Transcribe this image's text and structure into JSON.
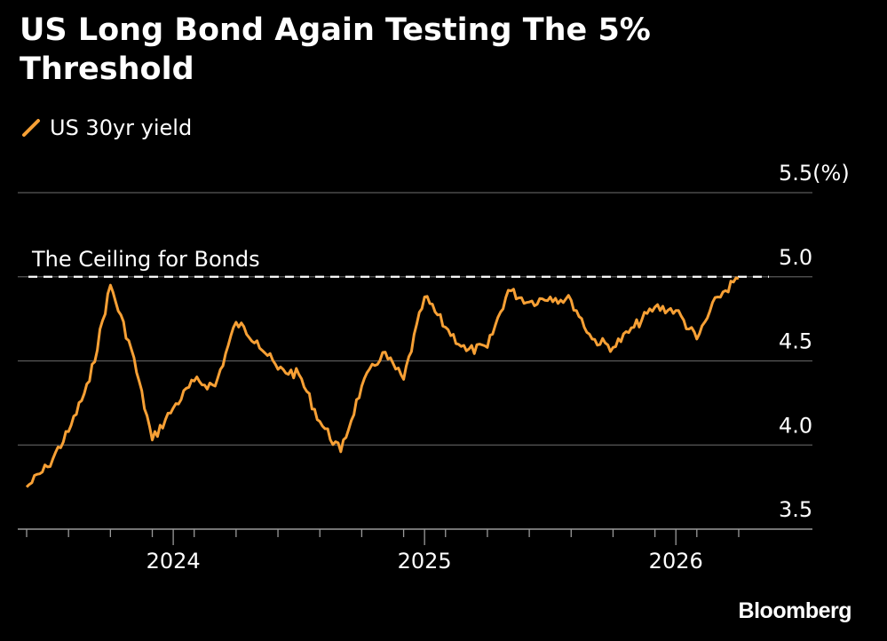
{
  "title": "US Long Bond Again Testing The 5% Threshold",
  "source": "Bloomberg",
  "colors": {
    "background": "#000000",
    "series": "#f7a035",
    "grid": "#5a5a5a",
    "reference": "#ffffff",
    "text": "#ffffff"
  },
  "chart_data": {
    "type": "line",
    "title": "US Long Bond Again Testing The 5% Threshold",
    "series": [
      {
        "name": "US 30yr yield",
        "x": [
          "2023-06",
          "2023-07",
          "2023-08",
          "2023-09",
          "2023-10",
          "2023-11",
          "2023-12",
          "2024-01",
          "2024-02",
          "2024-03",
          "2024-04",
          "2024-05",
          "2024-06",
          "2024-07",
          "2024-08",
          "2024-09",
          "2024-10",
          "2024-11",
          "2024-12",
          "2025-01",
          "2025-02",
          "2025-03",
          "2025-04",
          "2025-05",
          "2025-06",
          "2025-07",
          "2025-08",
          "2025-09",
          "2025-10",
          "2025-11",
          "2025-12",
          "2026-01",
          "2026-02",
          "2026-03",
          "2026-04"
        ],
        "values": [
          3.75,
          3.87,
          4.08,
          4.38,
          4.95,
          4.57,
          4.03,
          4.22,
          4.38,
          4.35,
          4.73,
          4.62,
          4.45,
          4.42,
          4.14,
          3.96,
          4.35,
          4.55,
          4.39,
          4.88,
          4.7,
          4.56,
          4.58,
          4.92,
          4.85,
          4.88,
          4.86,
          4.63,
          4.58,
          4.7,
          4.82,
          4.8,
          4.63,
          4.88,
          4.99
        ]
      }
    ],
    "x_ticks": [
      "2024",
      "2025",
      "2026"
    ],
    "y_ticks": [
      "3.5",
      "4.0",
      "4.5",
      "5.0",
      "5.5(%)"
    ],
    "y_tick_values": [
      3.5,
      4.0,
      4.5,
      5.0,
      5.5
    ],
    "ylim": [
      3.5,
      5.5
    ],
    "xlim": [
      "2023-06",
      "2026-06"
    ],
    "reference_line": {
      "value": 5.0,
      "label": "The Ceiling for Bonds",
      "style": "dashed"
    },
    "grid": true,
    "legend_position": "top-left"
  }
}
